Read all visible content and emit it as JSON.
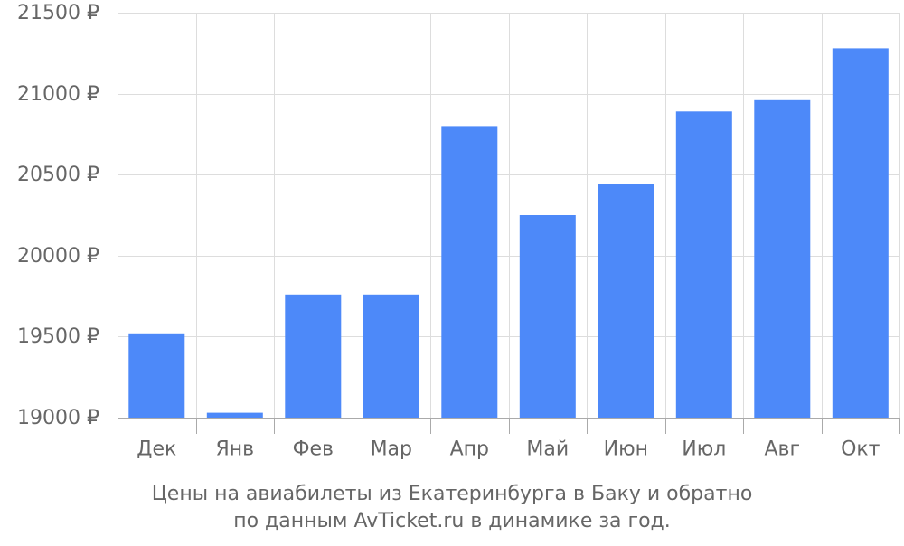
{
  "chart_data": {
    "type": "bar",
    "categories": [
      "Дек",
      "Янв",
      "Фев",
      "Мар",
      "Апр",
      "Май",
      "Июн",
      "Июл",
      "Авг",
      "Окт"
    ],
    "values": [
      19520,
      19030,
      19760,
      19760,
      20800,
      20250,
      20440,
      20890,
      20960,
      21280
    ],
    "ylim": [
      19000,
      21500
    ],
    "yticks": [
      19000,
      19500,
      20000,
      20500,
      21000,
      21500
    ],
    "ytick_labels": [
      "19000 ₽",
      "19500 ₽",
      "20000 ₽",
      "20500 ₽",
      "21000 ₽",
      "21500 ₽"
    ],
    "grid": true,
    "bar_color": "#4d89f9",
    "caption": [
      "Цены на авиабилеты из Екатеринбурга в Баку и обратно",
      "по данным AvTicket.ru в динамике за год."
    ]
  }
}
